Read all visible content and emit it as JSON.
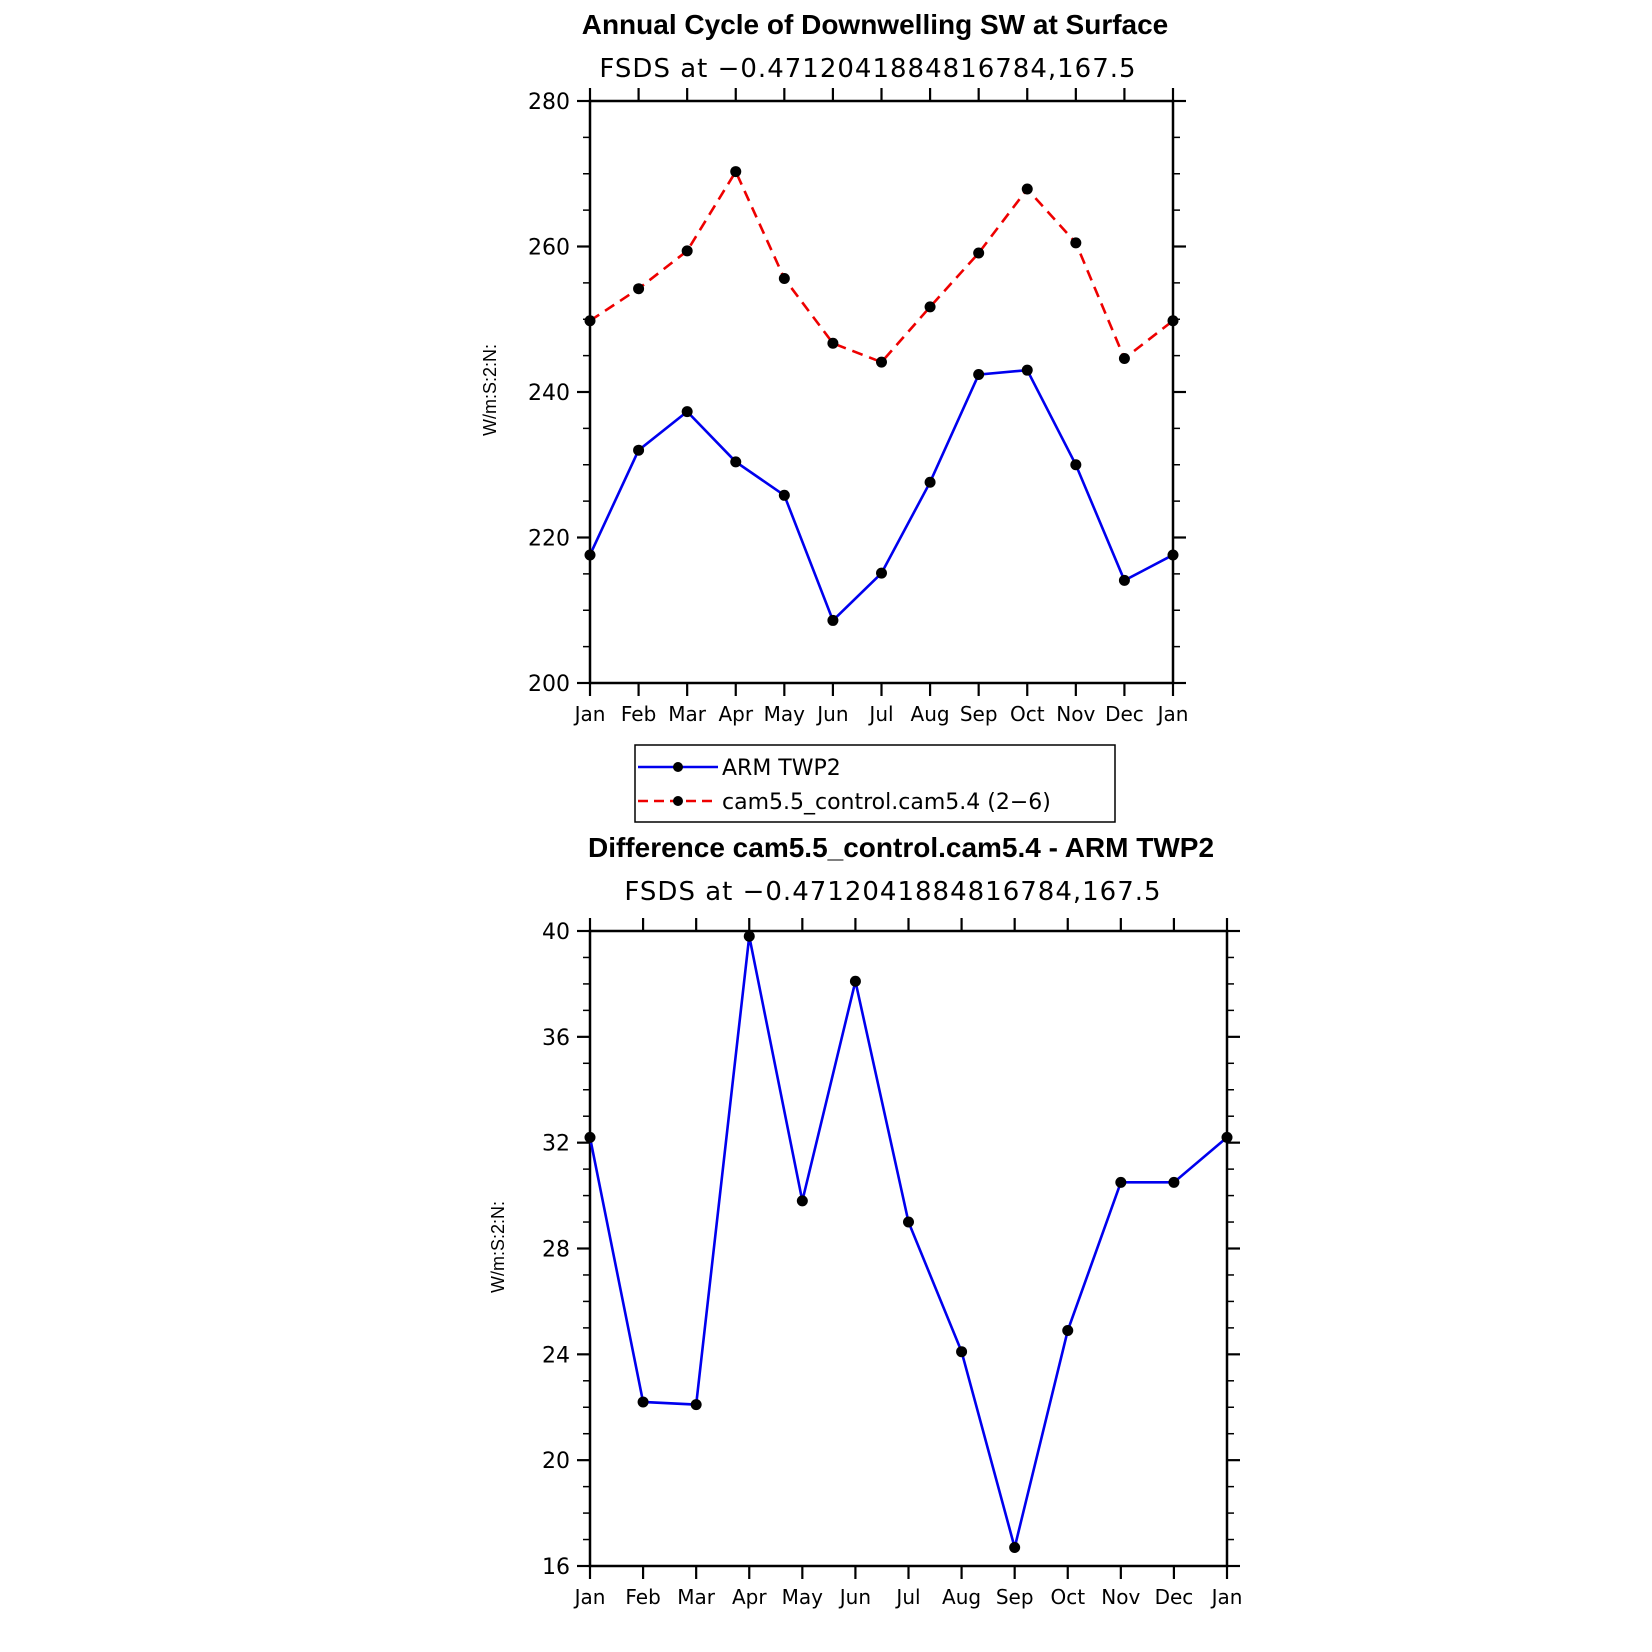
{
  "chart_data": [
    {
      "type": "line",
      "title": "Annual Cycle of Downwelling SW at Surface",
      "subtitle": "FSDS at −0.4712041884816784,167.5",
      "ylabel": "W/m:S:2:N:",
      "xlabel": "",
      "ylim": [
        200,
        280
      ],
      "yticks": [
        "200",
        "220",
        "240",
        "260",
        "280"
      ],
      "categories": [
        "Jan",
        "Feb",
        "Mar",
        "Apr",
        "May",
        "Jun",
        "Jul",
        "Aug",
        "Sep",
        "Oct",
        "Nov",
        "Dec",
        "Jan"
      ],
      "grid": false,
      "legend_position": "bottom",
      "series": [
        {
          "name": "ARM TWP2",
          "color": "#0000ee",
          "style": "solid",
          "values": [
            217.6,
            232.0,
            237.3,
            230.4,
            225.8,
            208.6,
            215.1,
            227.6,
            242.4,
            243.0,
            230.0,
            214.1,
            217.6
          ]
        },
        {
          "name": "cam5.5_control.cam5.4 (2−6)",
          "color": "#ee0000",
          "style": "dashed",
          "values": [
            249.8,
            254.2,
            259.4,
            270.3,
            255.6,
            246.7,
            244.1,
            251.7,
            259.1,
            267.9,
            260.5,
            244.6,
            249.8
          ]
        }
      ]
    },
    {
      "type": "line",
      "title": "Difference cam5.5_control.cam5.4 - ARM TWP2",
      "subtitle": "FSDS at −0.4712041884816784,167.5",
      "ylabel": "W/m:S:2:N:",
      "xlabel": "",
      "ylim": [
        16,
        40
      ],
      "yticks": [
        "16",
        "20",
        "24",
        "28",
        "32",
        "36",
        "40"
      ],
      "categories": [
        "Jan",
        "Feb",
        "Mar",
        "Apr",
        "May",
        "Jun",
        "Jul",
        "Aug",
        "Sep",
        "Oct",
        "Nov",
        "Dec",
        "Jan"
      ],
      "grid": false,
      "series": [
        {
          "color": "#0000ee",
          "style": "solid",
          "values": [
            32.2,
            22.2,
            22.1,
            39.8,
            29.8,
            38.1,
            29.0,
            24.1,
            16.7,
            24.9,
            30.5,
            30.5,
            32.2
          ]
        }
      ]
    }
  ]
}
